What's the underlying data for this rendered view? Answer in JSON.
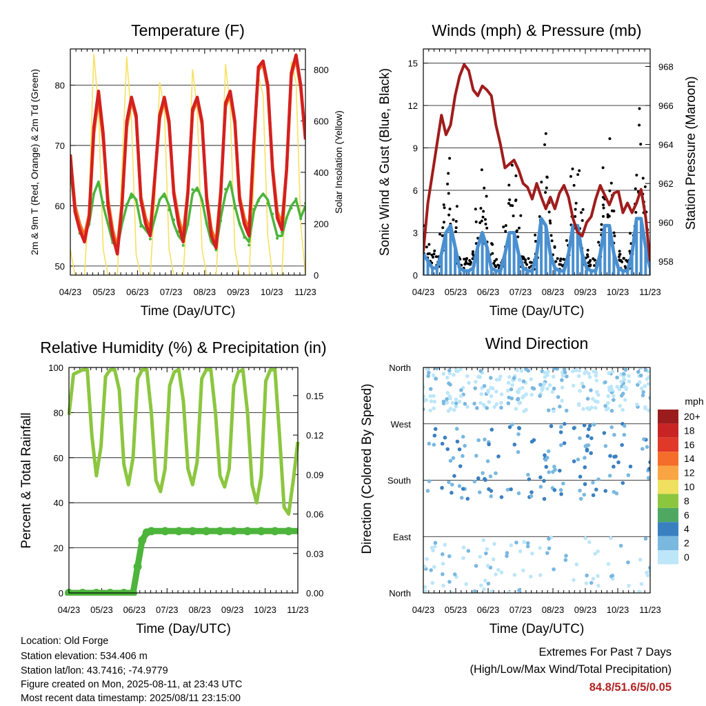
{
  "colors": {
    "temp_2m": "#d42020",
    "temp_9m": "#f46d20",
    "dewpoint": "#4db43c",
    "solar": "#f8e060",
    "sonic_wind": "#4a90d0",
    "gust": "#000000",
    "pressure": "#a01c1c",
    "rh": "#8cc63f",
    "precip": "#4db43c",
    "extremes": "#b22222"
  },
  "chart_data": [
    {
      "type": "line",
      "id": "temperature",
      "title": "Temperature (F)",
      "xlabel": "Time (Day/UTC)",
      "ylabel": "2m & 9m T (Red, Orange) & 2m Td (Green)",
      "ylabel_right": "Solar Insolation (Yellow)",
      "x_ticks": [
        "04/23",
        "05/23",
        "06/23",
        "07/23",
        "08/23",
        "09/23",
        "10/23",
        "11/23"
      ],
      "ylim": [
        48.5,
        86
      ],
      "yticks": [
        50,
        60,
        70,
        80
      ],
      "ylim_right": [
        0,
        880
      ],
      "yticks_right": [
        0,
        200,
        400,
        600,
        800
      ],
      "grid": "horizontal",
      "series": [
        {
          "name": "2m T",
          "axis": "left",
          "color": "temp_2m",
          "values": [
            68.5,
            59,
            56,
            54,
            58,
            73,
            79,
            72,
            60,
            55,
            52,
            60,
            74,
            78,
            75,
            61,
            57,
            55,
            65,
            75,
            78,
            74,
            62,
            57,
            54,
            62,
            76,
            78,
            74,
            61,
            55,
            53,
            62,
            77,
            79,
            74,
            61,
            57,
            55,
            70,
            83,
            84,
            80,
            66,
            58,
            56,
            66,
            82,
            85,
            80,
            71
          ]
        },
        {
          "name": "9m T",
          "axis": "left",
          "color": "temp_9m",
          "values": [
            68,
            60,
            57,
            55,
            58.5,
            72,
            78,
            71,
            61,
            56,
            53,
            60.5,
            73,
            77.5,
            74.5,
            61.5,
            58,
            56,
            65,
            74.5,
            77.5,
            73.5,
            62.5,
            58,
            55,
            62.5,
            75.5,
            77.5,
            73.5,
            61.5,
            56,
            54,
            62.5,
            76.5,
            78.5,
            73.5,
            61.5,
            58,
            56,
            70,
            82.5,
            83.5,
            79.5,
            66.5,
            59,
            57,
            66,
            81.5,
            84.5,
            79.5,
            71
          ]
        },
        {
          "name": "2m Td",
          "axis": "left",
          "color": "dewpoint",
          "values": [
            66,
            59,
            56,
            55,
            57,
            62,
            64,
            60,
            57,
            54,
            53,
            57,
            60,
            62,
            61,
            57,
            56,
            55,
            58,
            61,
            62,
            60,
            57,
            55,
            54,
            57,
            62,
            63,
            61,
            57,
            54,
            53,
            58,
            62,
            64,
            60,
            57,
            55,
            54,
            59,
            61,
            62,
            61,
            58,
            55,
            55,
            58,
            60,
            61,
            58,
            60
          ]
        },
        {
          "name": "Solar",
          "axis": "right",
          "color": "solar",
          "values": [
            100,
            0,
            0,
            0,
            300,
            860,
            650,
            100,
            0,
            0,
            0,
            420,
            850,
            600,
            80,
            0,
            0,
            0,
            300,
            750,
            650,
            100,
            0,
            0,
            0,
            300,
            800,
            650,
            100,
            0,
            0,
            0,
            300,
            820,
            650,
            100,
            0,
            0,
            0,
            350,
            780,
            700,
            150,
            0,
            0,
            0,
            380,
            830,
            750,
            200,
            0
          ]
        }
      ]
    },
    {
      "type": "line",
      "id": "winds",
      "title": "Winds (mph) & Pressure (mb)",
      "xlabel": "Time (Day/UTC)",
      "ylabel": "Sonic Wind & Gust (Blue, Black)",
      "ylabel_right": "Station Pressure (Maroon)",
      "x_ticks": [
        "04/23",
        "05/23",
        "06/23",
        "07/23",
        "08/23",
        "09/23",
        "10/23",
        "11/23"
      ],
      "ylim": [
        0,
        16
      ],
      "yticks": [
        0,
        3,
        6,
        9,
        12,
        15
      ],
      "ylim_right": [
        957.3,
        968.9
      ],
      "yticks_right": [
        958,
        960,
        962,
        964,
        966,
        968
      ],
      "grid": "horizontal",
      "series": [
        {
          "name": "Sonic Wind",
          "color": "sonic_wind",
          "values": [
            1.5,
            1,
            0.5,
            0.5,
            1.5,
            3,
            3.5,
            2,
            0.5,
            0.3,
            0.3,
            0.5,
            2,
            3,
            2,
            0.5,
            0.3,
            0.3,
            1.5,
            3,
            3,
            1.5,
            0.5,
            0.3,
            0.3,
            1.5,
            4,
            3.5,
            1.5,
            0.5,
            0.3,
            0.3,
            1.5,
            3.5,
            3.5,
            1.5,
            0.5,
            0.3,
            0.3,
            1.5,
            3.5,
            3.5,
            1.5,
            0.5,
            0.3,
            0.3,
            1.5,
            4,
            4,
            2,
            0.5
          ]
        },
        {
          "name": "Gust",
          "color": "gust",
          "values": [
            3,
            2,
            1.5,
            1.5,
            3,
            6,
            8,
            5,
            1.5,
            1,
            1,
            1.5,
            4,
            7,
            5,
            2,
            1,
            1,
            3,
            6,
            7,
            4,
            1.5,
            1,
            1,
            3,
            8,
            9,
            5,
            2,
            1,
            1,
            3,
            7,
            8,
            4,
            1.5,
            1,
            1,
            3,
            8,
            9,
            5,
            1.5,
            1,
            1,
            3,
            7,
            10,
            6,
            2
          ]
        },
        {
          "name": "Station Pressure",
          "axis": "right",
          "color": "pressure",
          "values": [
            958.5,
            961,
            962.5,
            964,
            965.5,
            964.5,
            965,
            966.5,
            967.5,
            968.1,
            967.8,
            966.8,
            966.5,
            967,
            966.8,
            966.5,
            965,
            964,
            962.8,
            963,
            963.2,
            962.7,
            962,
            961.8,
            961.2,
            962,
            961.3,
            960.7,
            961.3,
            960.7,
            961.5,
            961.9,
            961.3,
            960.2,
            959.5,
            959.3,
            960,
            960.3,
            961.2,
            961.9,
            961.4,
            960.9,
            961.5,
            961.6,
            960.5,
            961,
            960.5,
            961,
            961.7,
            960.3,
            958
          ]
        }
      ]
    },
    {
      "type": "line",
      "id": "humidity",
      "title": "Relative Humidity (%) & Precipitation (in)",
      "xlabel": "Time (Day/UTC)",
      "ylabel": "Percent & Total Rainfall",
      "x_ticks": [
        "04/23",
        "05/23",
        "06/23",
        "07/23",
        "08/23",
        "09/23",
        "10/23",
        "11/23"
      ],
      "ylim": [
        0,
        100
      ],
      "yticks": [
        0,
        20,
        40,
        60,
        80,
        100
      ],
      "ylim_right": [
        0,
        0.1714
      ],
      "yticks_right": [
        "0.00",
        "0.03",
        "0.06",
        "0.09",
        "0.12",
        "0.15"
      ],
      "grid": "horizontal",
      "series": [
        {
          "name": "RH",
          "color": "rh",
          "values": [
            79,
            97,
            98,
            99,
            99,
            70,
            52,
            65,
            96,
            99,
            99,
            90,
            57,
            48,
            60,
            95,
            99,
            99,
            80,
            50,
            45,
            55,
            92,
            98,
            99,
            85,
            55,
            48,
            58,
            95,
            99,
            99,
            80,
            52,
            47,
            55,
            92,
            98,
            99,
            80,
            48,
            40,
            52,
            94,
            99,
            99,
            70,
            38,
            35,
            50,
            67
          ]
        },
        {
          "name": "Precip",
          "axis": "right",
          "color": "precip",
          "values": [
            0,
            0,
            0,
            0,
            0,
            0,
            0,
            0,
            0,
            0,
            0,
            0,
            0,
            0,
            0,
            0.02,
            0.04,
            0.046,
            0.047,
            0.047,
            0.047,
            0.047,
            0.047,
            0.047,
            0.047,
            0.047,
            0.047,
            0.047,
            0.047,
            0.047,
            0.047,
            0.047,
            0.047,
            0.047,
            0.047,
            0.047,
            0.047,
            0.047,
            0.047,
            0.047,
            0.047,
            0.047,
            0.047,
            0.047,
            0.047,
            0.047,
            0.047,
            0.047,
            0.047,
            0.047,
            0.047
          ]
        }
      ]
    },
    {
      "type": "scatter",
      "id": "wind_direction",
      "title": "Wind Direction",
      "xlabel": "Time (Day/UTC)",
      "ylabel": "Direction (Colored By Speed)",
      "x_ticks": [
        "04/23",
        "05/23",
        "06/23",
        "07/23",
        "08/23",
        "09/23",
        "10/23",
        "11/23"
      ],
      "yticks": [
        "North",
        "East",
        "South",
        "West",
        "North"
      ],
      "grid": "horizontal",
      "legend": {
        "title": "mph",
        "position": "right",
        "labels": [
          "20+",
          "18",
          "16",
          "14",
          "12",
          "10",
          "8",
          "6",
          "4",
          "2",
          "0"
        ],
        "colors": [
          "#9b1c1c",
          "#c82424",
          "#e0392a",
          "#f46d2a",
          "#f9a543",
          "#f0e060",
          "#8cc63f",
          "#4ea862",
          "#3a80c0",
          "#7ab8e0",
          "#bde6f8"
        ]
      }
    }
  ],
  "footer": {
    "location": "Location: Old Forge",
    "elevation": "Station elevation: 534.406 m",
    "latlon": "Station lat/lon: 43.7416; -74.9779",
    "created": "Figure created on Mon, 2025-08-11, at 23:43 UTC",
    "recent": "Most recent data timestamp: 2025/08/11 23:15:00"
  },
  "extremes": {
    "heading": "Extremes For Past 7 Days",
    "subheading": "(High/Low/Max Wind/Total Precipitation)",
    "values": "84.8/51.6/5/0.05"
  }
}
